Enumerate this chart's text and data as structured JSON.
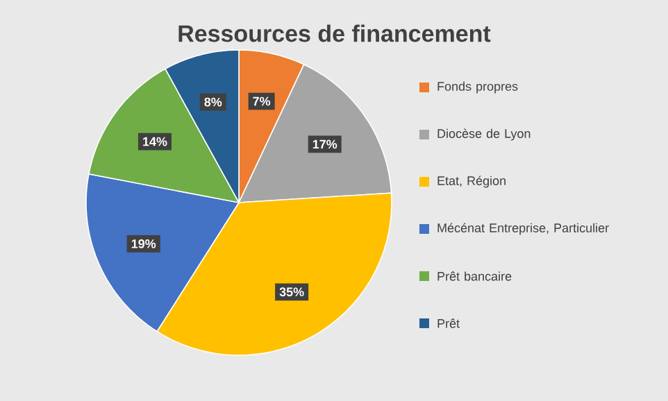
{
  "chart_data": {
    "type": "pie",
    "title": "Ressources de financement",
    "categories": [
      "Fonds propres",
      "Diocèse de Lyon",
      "Etat, Région",
      "Mécénat Entreprise, Particulier",
      "Prêt bancaire",
      "Prêt"
    ],
    "values": [
      7,
      17,
      35,
      19,
      14,
      8
    ],
    "value_labels": [
      "7%",
      "17%",
      "35%",
      "19%",
      "14%",
      "8%"
    ],
    "colors": [
      "#ed7d31",
      "#a5a5a5",
      "#ffc000",
      "#4472c4",
      "#70ad47",
      "#255e91"
    ],
    "legend": "right"
  }
}
